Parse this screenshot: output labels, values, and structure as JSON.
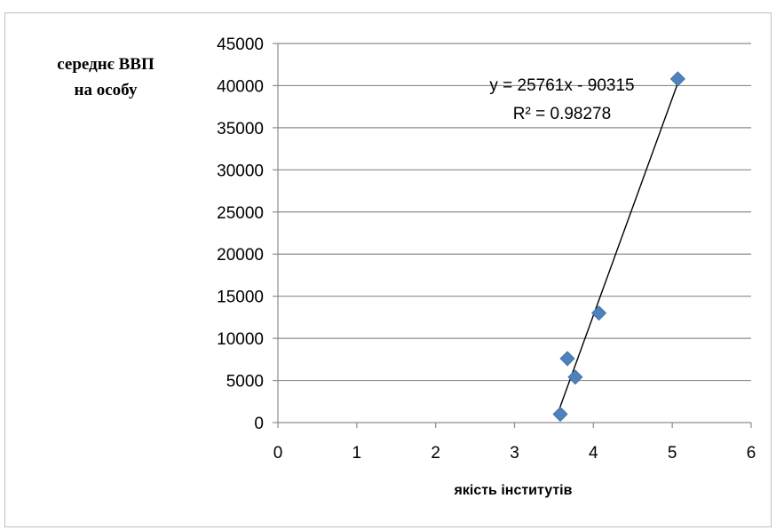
{
  "chart_data": {
    "type": "scatter",
    "ylabel_lines": [
      "середнє ВВП",
      "на особу"
    ],
    "xlabel": "якість інститутів",
    "xlim": [
      0,
      6
    ],
    "ylim": [
      0,
      45000
    ],
    "x_ticks": [
      0,
      1,
      2,
      3,
      4,
      5,
      6
    ],
    "y_ticks": [
      0,
      5000,
      10000,
      15000,
      20000,
      25000,
      30000,
      35000,
      40000,
      45000
    ],
    "grid": "horizontal",
    "marker_color": "#4F81BD",
    "points": [
      {
        "x": 3.58,
        "y": 1000
      },
      {
        "x": 3.67,
        "y": 7600
      },
      {
        "x": 3.77,
        "y": 5400
      },
      {
        "x": 4.07,
        "y": 13000
      },
      {
        "x": 5.07,
        "y": 40800
      }
    ],
    "trendline": {
      "type": "linear",
      "slope": 25761,
      "intercept": -90315,
      "x_range": [
        3.54,
        5.08
      ]
    },
    "annotations": {
      "equation": "y = 25761x - 90315",
      "r_squared": "R² = 0.98278"
    }
  }
}
